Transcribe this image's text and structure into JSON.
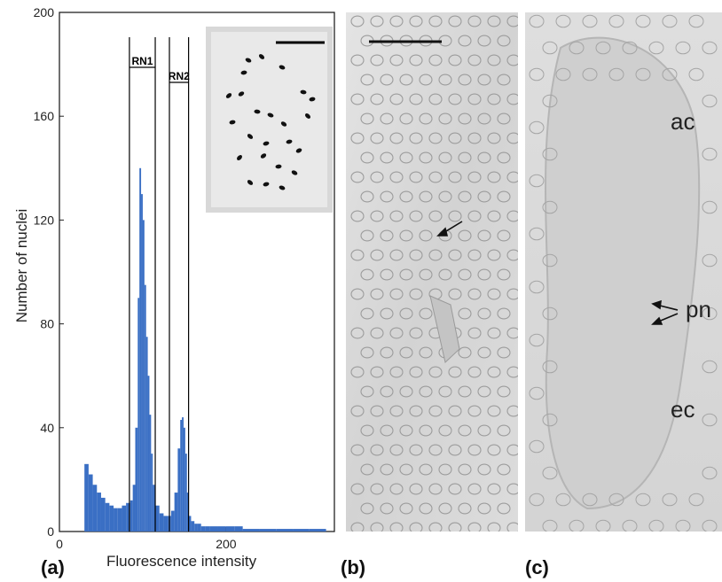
{
  "panels": {
    "a": {
      "label": "(a)"
    },
    "b": {
      "label": "(b)"
    },
    "c": {
      "label": "(c)"
    }
  },
  "histogram": {
    "xlabel": "Fluorescence intensity",
    "ylabel": "Number of nuclei",
    "gates": [
      "RN1",
      "RN2"
    ],
    "bar_color": "#3a6fc4"
  },
  "micrograph_c": {
    "labels": {
      "ac": "ac",
      "pn": "pn",
      "ec": "ec"
    }
  },
  "chart_data": {
    "type": "bar",
    "title": "",
    "xlabel": "Fluorescence intensity",
    "ylabel": "Number of nuclei",
    "xlim": [
      0,
      330
    ],
    "ylim": [
      0,
      200
    ],
    "xticks": [
      0,
      200
    ],
    "yticks": [
      0,
      40,
      80,
      120,
      160,
      200
    ],
    "gates": [
      {
        "name": "RN1",
        "range": [
          84,
          115
        ]
      },
      {
        "name": "RN2",
        "range": [
          132,
          155
        ]
      }
    ],
    "x": [
      30,
      35,
      40,
      45,
      50,
      55,
      60,
      65,
      70,
      75,
      80,
      85,
      88,
      91,
      94,
      96,
      98,
      100,
      102,
      104,
      106,
      108,
      110,
      112,
      115,
      120,
      125,
      130,
      134,
      138,
      142,
      145,
      147,
      149,
      151,
      153,
      155,
      158,
      162,
      166,
      170,
      175,
      180,
      190,
      200,
      210,
      220,
      240,
      260,
      280,
      300,
      320
    ],
    "values": [
      26,
      22,
      18,
      15,
      13,
      11,
      10,
      9,
      9,
      10,
      11,
      12,
      18,
      40,
      90,
      140,
      130,
      120,
      95,
      75,
      60,
      45,
      30,
      18,
      10,
      7,
      6,
      6,
      8,
      15,
      32,
      43,
      44,
      40,
      30,
      15,
      6,
      4,
      3,
      3,
      2,
      2,
      2,
      2,
      2,
      2,
      1,
      1,
      1,
      1,
      1,
      0
    ]
  }
}
